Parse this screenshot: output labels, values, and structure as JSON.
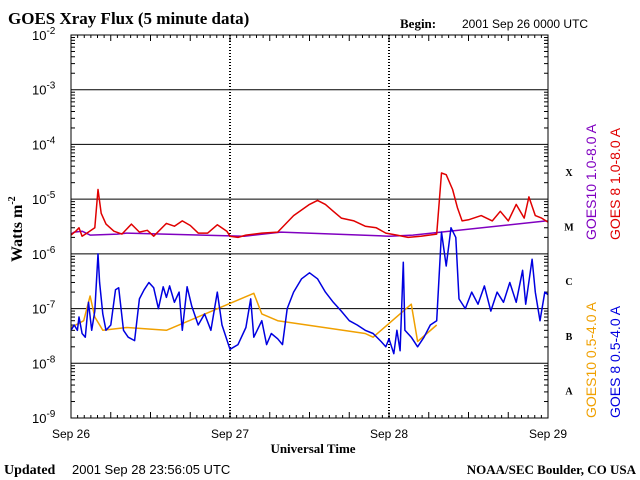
{
  "chart_data": {
    "type": "line",
    "title": "GOES Xray Flux (5 minute data)",
    "begin_label": "Begin:",
    "begin_value": "2001 Sep 26 0000 UTC",
    "xlabel": "Universal Time",
    "ylabel": "Watts m",
    "ylabel_superscript": "-2",
    "y_scale": "log",
    "ylim": [
      1e-09,
      0.01
    ],
    "y_ticks": [
      {
        "base": "10",
        "exp": "-2"
      },
      {
        "base": "10",
        "exp": "-3"
      },
      {
        "base": "10",
        "exp": "-4"
      },
      {
        "base": "10",
        "exp": "-5"
      },
      {
        "base": "10",
        "exp": "-6"
      },
      {
        "base": "10",
        "exp": "-7"
      },
      {
        "base": "10",
        "exp": "-8"
      },
      {
        "base": "10",
        "exp": "-9"
      }
    ],
    "x_ticks": [
      "Sep 26",
      "Sep 27",
      "Sep 28",
      "Sep 29"
    ],
    "flare_classes": [
      "X",
      "M",
      "C",
      "B",
      "A"
    ],
    "grid": true,
    "legend_placement": "right, vertical",
    "series": [
      {
        "name": "GOES10 1.0-8.0 A",
        "color": "#8000c0",
        "points": [
          [
            0.0,
            2.3e-06
          ],
          [
            0.02,
            2.5e-06
          ],
          [
            0.07,
            2.6e-06
          ],
          [
            0.12,
            2.2e-06
          ],
          [
            0.29,
            2.3e-06
          ],
          [
            0.35,
            2.4e-06
          ],
          [
            1.09,
            2.1e-06
          ],
          [
            1.32,
            2.5e-06
          ],
          [
            2.0,
            2.1e-06
          ],
          [
            2.15,
            2.2e-06
          ],
          [
            2.99,
            4e-06
          ]
        ]
      },
      {
        "name": "GOES 8 1.0-8.0 A",
        "color": "#e00000",
        "points": [
          [
            0.0,
            2.2e-06
          ],
          [
            0.03,
            2.6e-06
          ],
          [
            0.05,
            3e-06
          ],
          [
            0.07,
            2.1e-06
          ],
          [
            0.1,
            2.4e-06
          ],
          [
            0.15,
            3e-06
          ],
          [
            0.17,
            1.5e-05
          ],
          [
            0.19,
            5.5e-06
          ],
          [
            0.22,
            3.5e-06
          ],
          [
            0.27,
            2.6e-06
          ],
          [
            0.32,
            2.3e-06
          ],
          [
            0.38,
            3.5e-06
          ],
          [
            0.43,
            2.5e-06
          ],
          [
            0.48,
            2.7e-06
          ],
          [
            0.52,
            2.1e-06
          ],
          [
            0.6,
            3.6e-06
          ],
          [
            0.65,
            3.2e-06
          ],
          [
            0.7,
            4e-06
          ],
          [
            0.75,
            3.3e-06
          ],
          [
            0.8,
            2.4e-06
          ],
          [
            0.86,
            2.4e-06
          ],
          [
            0.92,
            3.4e-06
          ],
          [
            0.98,
            2.6e-06
          ],
          [
            1.0,
            2.1e-06
          ],
          [
            1.05,
            2e-06
          ],
          [
            1.1,
            2.2e-06
          ],
          [
            1.2,
            2.4e-06
          ],
          [
            1.3,
            2.5e-06
          ],
          [
            1.4,
            5e-06
          ],
          [
            1.5,
            8e-06
          ],
          [
            1.55,
            9.5e-06
          ],
          [
            1.6,
            8e-06
          ],
          [
            1.65,
            6e-06
          ],
          [
            1.7,
            4.5e-06
          ],
          [
            1.78,
            4e-06
          ],
          [
            1.85,
            3.2e-06
          ],
          [
            1.92,
            3e-06
          ],
          [
            1.98,
            2.4e-06
          ],
          [
            2.05,
            2.2e-06
          ],
          [
            2.12,
            2e-06
          ],
          [
            2.2,
            2.1e-06
          ],
          [
            2.3,
            2.3e-06
          ],
          [
            2.33,
            3e-05
          ],
          [
            2.36,
            2.8e-05
          ],
          [
            2.4,
            1.5e-05
          ],
          [
            2.43,
            7e-06
          ],
          [
            2.46,
            4e-06
          ],
          [
            2.5,
            4.2e-06
          ],
          [
            2.58,
            5e-06
          ],
          [
            2.65,
            4e-06
          ],
          [
            2.7,
            6e-06
          ],
          [
            2.75,
            4e-06
          ],
          [
            2.8,
            8e-06
          ],
          [
            2.85,
            4.5e-06
          ],
          [
            2.88,
            1.1e-05
          ],
          [
            2.92,
            5e-06
          ],
          [
            2.96,
            4.5e-06
          ],
          [
            3.0,
            3.8e-06
          ]
        ]
      },
      {
        "name": "GOES10 0.5-4.0 A",
        "color": "#f0a000",
        "points": [
          [
            0.0,
            4.5e-08
          ],
          [
            0.08,
            6e-08
          ],
          [
            0.12,
            1.7e-07
          ],
          [
            0.15,
            7e-08
          ],
          [
            0.2,
            4e-08
          ],
          [
            0.35,
            4.5e-08
          ],
          [
            0.6,
            4e-08
          ],
          [
            1.15,
            1.9e-07
          ],
          [
            1.2,
            8e-08
          ],
          [
            1.3,
            6e-08
          ],
          [
            1.85,
            3.5e-08
          ],
          [
            1.9,
            3e-08
          ],
          [
            2.14,
            1.2e-07
          ],
          [
            2.18,
            2.5e-08
          ],
          [
            2.3,
            5e-08
          ]
        ]
      },
      {
        "name": "GOES 8 0.5-4.0 A",
        "color": "#0000e0",
        "points": [
          [
            0.0,
            4e-08
          ],
          [
            0.02,
            5e-08
          ],
          [
            0.04,
            4e-08
          ],
          [
            0.05,
            7e-08
          ],
          [
            0.07,
            3.5e-08
          ],
          [
            0.09,
            3e-08
          ],
          [
            0.11,
            1.3e-07
          ],
          [
            0.13,
            4e-08
          ],
          [
            0.15,
            9e-08
          ],
          [
            0.17,
            1e-06
          ],
          [
            0.18,
            3e-07
          ],
          [
            0.2,
            8e-08
          ],
          [
            0.22,
            4e-08
          ],
          [
            0.25,
            5e-08
          ],
          [
            0.28,
            2.2e-07
          ],
          [
            0.3,
            2.4e-07
          ],
          [
            0.33,
            4e-08
          ],
          [
            0.36,
            3e-08
          ],
          [
            0.4,
            2.6e-08
          ],
          [
            0.43,
            1.5e-07
          ],
          [
            0.46,
            2.2e-07
          ],
          [
            0.49,
            3e-07
          ],
          [
            0.52,
            2.4e-07
          ],
          [
            0.55,
            1e-07
          ],
          [
            0.58,
            2.5e-07
          ],
          [
            0.6,
            1.6e-07
          ],
          [
            0.62,
            2.6e-07
          ],
          [
            0.65,
            1.3e-07
          ],
          [
            0.68,
            2e-07
          ],
          [
            0.7,
            4e-08
          ],
          [
            0.73,
            2.5e-07
          ],
          [
            0.76,
            1.1e-07
          ],
          [
            0.8,
            5e-08
          ],
          [
            0.84,
            8e-08
          ],
          [
            0.88,
            4e-08
          ],
          [
            0.92,
            2e-07
          ],
          [
            0.95,
            5e-08
          ],
          [
            1.0,
            1.8e-08
          ],
          [
            1.05,
            2.2e-08
          ],
          [
            1.1,
            4.5e-08
          ],
          [
            1.13,
            1.5e-07
          ],
          [
            1.15,
            3e-08
          ],
          [
            1.2,
            6e-08
          ],
          [
            1.23,
            2.2e-08
          ],
          [
            1.26,
            3.5e-08
          ],
          [
            1.3,
            2.8e-08
          ],
          [
            1.33,
            2.2e-08
          ],
          [
            1.36,
            1e-07
          ],
          [
            1.4,
            2e-07
          ],
          [
            1.45,
            3.5e-07
          ],
          [
            1.5,
            4.5e-07
          ],
          [
            1.55,
            3.5e-07
          ],
          [
            1.6,
            2e-07
          ],
          [
            1.65,
            1.3e-07
          ],
          [
            1.7,
            9e-08
          ],
          [
            1.75,
            6e-08
          ],
          [
            1.8,
            5e-08
          ],
          [
            1.85,
            4e-08
          ],
          [
            1.9,
            3.5e-08
          ],
          [
            1.95,
            2.5e-08
          ],
          [
            1.98,
            2e-08
          ],
          [
            2.0,
            2.8e-08
          ],
          [
            2.03,
            1.5e-08
          ],
          [
            2.05,
            4e-08
          ],
          [
            2.07,
            1.7e-08
          ],
          [
            2.09,
            7e-07
          ],
          [
            2.1,
            4e-08
          ],
          [
            2.14,
            3e-08
          ],
          [
            2.18,
            2e-08
          ],
          [
            2.22,
            3e-08
          ],
          [
            2.26,
            5e-08
          ],
          [
            2.3,
            6e-08
          ],
          [
            2.33,
            2.5e-06
          ],
          [
            2.36,
            6e-07
          ],
          [
            2.39,
            3e-06
          ],
          [
            2.42,
            2e-06
          ],
          [
            2.44,
            1.5e-07
          ],
          [
            2.48,
            1e-07
          ],
          [
            2.52,
            2e-07
          ],
          [
            2.56,
            1.2e-07
          ],
          [
            2.6,
            2.6e-07
          ],
          [
            2.64,
            9e-08
          ],
          [
            2.68,
            2e-07
          ],
          [
            2.72,
            1.3e-07
          ],
          [
            2.76,
            3e-07
          ],
          [
            2.8,
            1.3e-07
          ],
          [
            2.84,
            5e-07
          ],
          [
            2.86,
            1.2e-07
          ],
          [
            2.9,
            8e-07
          ],
          [
            2.92,
            2e-07
          ],
          [
            2.95,
            6e-08
          ],
          [
            2.98,
            2e-07
          ],
          [
            3.0,
            1.8e-07
          ]
        ]
      }
    ]
  },
  "footer": {
    "updated_prefix": "Updated",
    "updated_value": "2001 Sep 28 23:56:05 UTC",
    "source": "NOAA/SEC Boulder, CO USA"
  }
}
